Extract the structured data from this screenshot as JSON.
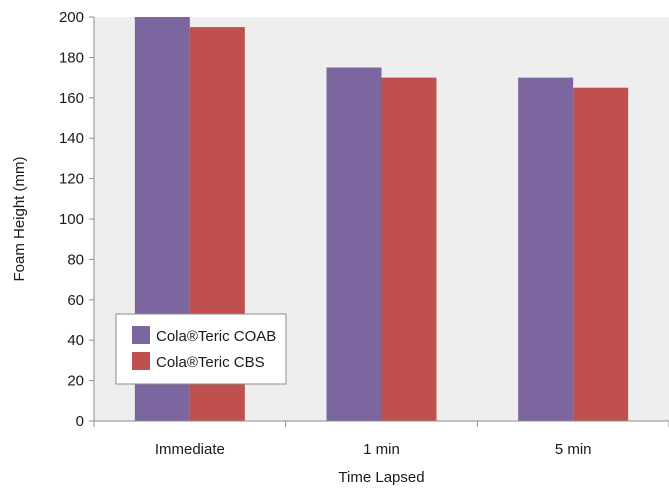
{
  "chart_data": {
    "type": "bar",
    "categories": [
      "Immediate",
      "1 min",
      "5 min"
    ],
    "series": [
      {
        "name": "Cola®Teric COAB",
        "values": [
          200,
          175,
          170
        ],
        "color": "#7b66a0"
      },
      {
        "name": "Cola®Teric CBS",
        "values": [
          195,
          170,
          165
        ],
        "color": "#c0504d"
      }
    ],
    "xlabel": "Time Lapsed",
    "ylabel": "Foam Height (mm)",
    "ylim": [
      0,
      200
    ],
    "yticks": [
      0,
      20,
      40,
      60,
      80,
      100,
      120,
      140,
      160,
      180,
      200
    ],
    "grid": false,
    "plot_background": "#eeeeee",
    "legend_position": "lower-left"
  }
}
